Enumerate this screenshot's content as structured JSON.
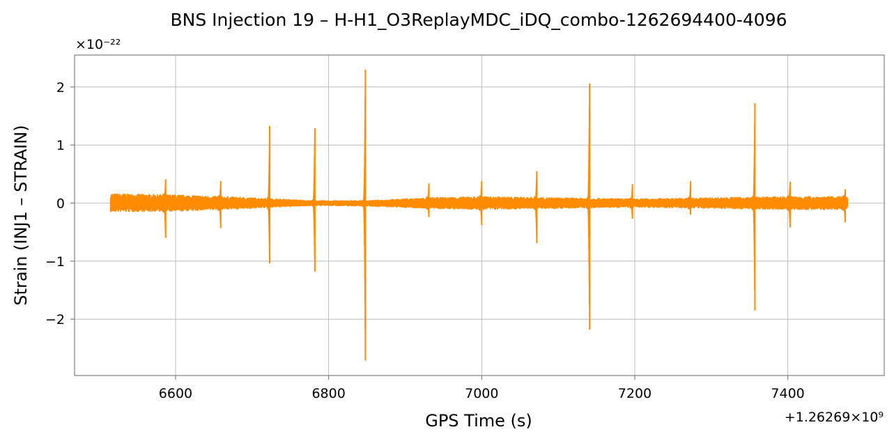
{
  "chart_data": {
    "type": "line",
    "title": "BNS Injection 19 – H-H1_O3ReplayMDC_iDQ_combo-1262694400-4096",
    "xlabel": "GPS Time (s)",
    "ylabel": "Strain (INJ1 – STRAIN)",
    "x_offset_label": "+1.26269×10⁹",
    "y_scale_label": "×10⁻²²",
    "xlim": [
      6468,
      7526
    ],
    "ylim": [
      -2.97,
      2.55
    ],
    "x_ticks": [
      6600,
      6800,
      7000,
      7200,
      7400
    ],
    "x_tick_labels": [
      "6600",
      "6800",
      "7000",
      "7200",
      "7400"
    ],
    "y_ticks": [
      -2,
      -1,
      0,
      1,
      2
    ],
    "y_tick_labels": [
      "−2",
      "−1",
      "0",
      "1",
      "2"
    ],
    "grid": true,
    "series": [
      {
        "color": "#ff8c00",
        "x_range": [
          6515,
          7478
        ],
        "background_band": [
          {
            "x": 6515,
            "top": 0.17,
            "bottom": -0.16
          },
          {
            "x": 6600,
            "top": 0.15,
            "bottom": -0.15
          },
          {
            "x": 6700,
            "top": 0.1,
            "bottom": -0.1
          },
          {
            "x": 6780,
            "top": 0.05,
            "bottom": -0.05
          },
          {
            "x": 6850,
            "top": 0.05,
            "bottom": -0.06
          },
          {
            "x": 6930,
            "top": 0.1,
            "bottom": -0.1
          },
          {
            "x": 7000,
            "top": 0.12,
            "bottom": -0.12
          },
          {
            "x": 7100,
            "top": 0.1,
            "bottom": -0.1
          },
          {
            "x": 7200,
            "top": 0.08,
            "bottom": -0.08
          },
          {
            "x": 7300,
            "top": 0.1,
            "bottom": -0.1
          },
          {
            "x": 7400,
            "top": 0.12,
            "bottom": -0.12
          },
          {
            "x": 7478,
            "top": 0.12,
            "bottom": -0.12
          }
        ],
        "spikes": [
          {
            "x": 6587,
            "max": 0.4,
            "min": -0.6
          },
          {
            "x": 6659,
            "max": 0.37,
            "min": -0.43
          },
          {
            "x": 6723,
            "max": 1.32,
            "min": -1.04
          },
          {
            "x": 6782,
            "max": 1.28,
            "min": -1.18
          },
          {
            "x": 6848,
            "max": 2.29,
            "min": -2.71
          },
          {
            "x": 6931,
            "max": 0.33,
            "min": -0.24
          },
          {
            "x": 7000,
            "max": 0.37,
            "min": -0.38
          },
          {
            "x": 7072,
            "max": 0.54,
            "min": -0.69
          },
          {
            "x": 7141,
            "max": 2.05,
            "min": -2.18
          },
          {
            "x": 7197,
            "max": 0.32,
            "min": -0.27
          },
          {
            "x": 7273,
            "max": 0.37,
            "min": -0.2
          },
          {
            "x": 7357,
            "max": 1.71,
            "min": -1.85
          },
          {
            "x": 7403,
            "max": 0.36,
            "min": -0.42
          },
          {
            "x": 7475,
            "max": 0.23,
            "min": -0.33
          }
        ]
      }
    ]
  }
}
